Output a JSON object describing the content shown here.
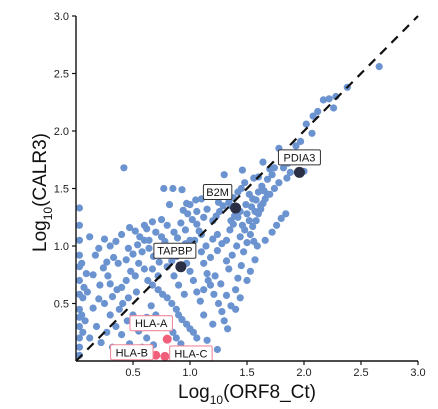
{
  "chart_data": {
    "type": "scatter",
    "xlabel": {
      "prefix": "Log",
      "sub": "10",
      "suffix": "(ORF8_Ct)"
    },
    "ylabel": {
      "prefix": "Log",
      "sub": "10",
      "suffix": "(CALR3)"
    },
    "xlim": [
      0,
      3.0
    ],
    "ylim": [
      0,
      3.0
    ],
    "x_ticks": [
      "0.5",
      "1.0",
      "1.5",
      "2.0",
      "2.5",
      "3.0"
    ],
    "y_ticks": [
      "0.5",
      "1.0",
      "1.5",
      "2.0",
      "2.5",
      "3.0"
    ],
    "diagonal": "y = x, dashed",
    "grid": false,
    "colors": {
      "points": "#6b93d0",
      "highlight": "#2b2f45",
      "hla": "#f0607a",
      "hla_border": "#f28a9c",
      "label_border": "#333333"
    },
    "highlighted": [
      {
        "label": "PDIA3",
        "x": 1.96,
        "y": 1.64
      },
      {
        "label": "B2M",
        "x": 1.4,
        "y": 1.33
      },
      {
        "label": "TAPBP",
        "x": 0.92,
        "y": 0.82
      }
    ],
    "hla": [
      {
        "label": "HLA-A",
        "x": 0.8,
        "y": 0.19
      },
      {
        "label": "HLA-B",
        "x": 0.7,
        "y": 0.05
      },
      {
        "label": "HLA-C",
        "x": 0.78,
        "y": 0.04
      }
    ],
    "points": [
      [
        2.66,
        2.56
      ],
      [
        2.38,
        2.38
      ],
      [
        2.28,
        2.3
      ],
      [
        2.22,
        2.28
      ],
      [
        2.17,
        2.27
      ],
      [
        2.12,
        2.17
      ],
      [
        2.08,
        2.13
      ],
      [
        2.02,
        2.06
      ],
      [
        2.26,
        2.2
      ],
      [
        2.07,
        1.98
      ],
      [
        1.97,
        1.91
      ],
      [
        1.93,
        1.87
      ],
      [
        1.9,
        1.76
      ],
      [
        1.86,
        1.72
      ],
      [
        1.82,
        1.78
      ],
      [
        1.78,
        1.85
      ],
      [
        1.74,
        1.68
      ],
      [
        1.7,
        1.67
      ],
      [
        1.64,
        1.73
      ],
      [
        1.6,
        1.6
      ],
      [
        1.56,
        1.59
      ],
      [
        1.52,
        1.45
      ],
      [
        1.48,
        1.55
      ],
      [
        1.45,
        1.5
      ],
      [
        1.42,
        1.47
      ],
      [
        1.38,
        1.42
      ],
      [
        1.34,
        1.38
      ],
      [
        1.31,
        1.45
      ],
      [
        1.27,
        1.45
      ],
      [
        1.2,
        1.48
      ],
      [
        1.16,
        1.44
      ],
      [
        1.1,
        1.41
      ],
      [
        1.05,
        1.4
      ],
      [
        0.97,
        1.37
      ],
      [
        0.93,
        1.49
      ],
      [
        0.85,
        1.5
      ],
      [
        0.77,
        1.5
      ],
      [
        1.3,
        1.62
      ],
      [
        1.46,
        1.66
      ],
      [
        1.63,
        1.52
      ],
      [
        1.78,
        1.55
      ],
      [
        1.85,
        1.59
      ],
      [
        2.0,
        1.65
      ],
      [
        1.95,
        1.63
      ],
      [
        0.42,
        1.68
      ],
      [
        0.82,
        1.36
      ],
      [
        0.75,
        1.23
      ],
      [
        0.67,
        1.21
      ],
      [
        0.6,
        1.18
      ],
      [
        0.52,
        1.13
      ],
      [
        0.47,
        1.16
      ],
      [
        0.4,
        1.1
      ],
      [
        0.35,
        1.04
      ],
      [
        0.3,
        1.0
      ],
      [
        0.25,
        1.06
      ],
      [
        0.2,
        0.98
      ],
      [
        0.17,
        0.92
      ],
      [
        0.12,
        1.08
      ],
      [
        0.09,
        0.76
      ],
      [
        0.06,
        0.55
      ],
      [
        0.5,
        0.93
      ],
      [
        0.55,
        0.85
      ],
      [
        0.6,
        0.8
      ],
      [
        0.63,
        0.7
      ],
      [
        0.67,
        0.66
      ],
      [
        0.72,
        0.62
      ],
      [
        0.76,
        0.58
      ],
      [
        0.8,
        0.55
      ],
      [
        0.84,
        0.5
      ],
      [
        0.88,
        0.45
      ],
      [
        0.9,
        0.4
      ],
      [
        0.93,
        0.36
      ],
      [
        0.97,
        0.32
      ],
      [
        1.0,
        0.28
      ],
      [
        1.03,
        0.25
      ],
      [
        1.06,
        0.2
      ],
      [
        0.55,
        0.26
      ],
      [
        0.47,
        0.15
      ],
      [
        0.4,
        0.23
      ],
      [
        0.35,
        0.3
      ],
      [
        0.3,
        0.4
      ],
      [
        0.25,
        0.5
      ],
      [
        0.2,
        0.54
      ],
      [
        0.15,
        0.46
      ],
      [
        0.1,
        0.6
      ],
      [
        1.1,
        0.95
      ],
      [
        1.12,
        0.85
      ],
      [
        1.15,
        0.76
      ],
      [
        1.18,
        0.66
      ],
      [
        1.21,
        0.58
      ],
      [
        1.25,
        0.5
      ],
      [
        1.28,
        0.43
      ],
      [
        1.3,
        0.35
      ],
      [
        1.33,
        0.28
      ],
      [
        1.36,
        0.48
      ],
      [
        1.4,
        0.62
      ],
      [
        1.42,
        0.72
      ],
      [
        1.45,
        0.83
      ],
      [
        1.47,
        0.95
      ],
      [
        1.5,
        1.03
      ],
      [
        1.53,
        1.1
      ],
      [
        1.55,
        1.17
      ],
      [
        1.58,
        1.22
      ],
      [
        1.6,
        1.28
      ],
      [
        1.62,
        1.32
      ],
      [
        1.64,
        1.37
      ],
      [
        1.66,
        1.41
      ],
      [
        1.68,
        1.45
      ],
      [
        1.56,
        1.04
      ],
      [
        1.59,
        1.0
      ],
      [
        1.2,
        1.22
      ],
      [
        1.23,
        1.26
      ],
      [
        1.26,
        1.3
      ],
      [
        1.29,
        1.35
      ],
      [
        1.32,
        1.05
      ],
      [
        1.35,
        1.14
      ],
      [
        1.38,
        1.19
      ],
      [
        1.02,
        1.23
      ],
      [
        0.98,
        1.28
      ],
      [
        0.94,
        1.31
      ],
      [
        1.06,
        1.19
      ],
      [
        1.08,
        1.13
      ],
      [
        1.0,
        1.05
      ],
      [
        0.96,
        1.02
      ],
      [
        0.92,
        0.96
      ],
      [
        0.88,
        0.91
      ],
      [
        0.84,
        0.87
      ],
      [
        0.8,
        0.82
      ],
      [
        0.73,
        0.86
      ],
      [
        0.68,
        0.91
      ],
      [
        0.64,
        0.98
      ],
      [
        0.6,
        1.05
      ],
      [
        0.56,
        1.08
      ],
      [
        0.52,
        0.74
      ],
      [
        0.48,
        0.78
      ],
      [
        0.44,
        0.7
      ],
      [
        0.4,
        0.64
      ],
      [
        0.36,
        0.62
      ],
      [
        0.32,
        0.56
      ],
      [
        0.28,
        0.74
      ],
      [
        0.24,
        0.81
      ],
      [
        0.21,
        0.66
      ],
      [
        1.12,
        0.62
      ],
      [
        1.16,
        0.7
      ],
      [
        1.18,
        0.9
      ],
      [
        1.24,
        0.96
      ],
      [
        1.28,
        1.02
      ],
      [
        1.32,
        0.87
      ],
      [
        1.34,
        0.8
      ],
      [
        1.37,
        0.92
      ],
      [
        1.41,
        1.0
      ],
      [
        1.44,
        1.08
      ],
      [
        1.48,
        1.14
      ],
      [
        1.52,
        1.22
      ],
      [
        1.57,
        1.3
      ],
      [
        1.62,
        1.35
      ],
      [
        1.7,
        1.45
      ],
      [
        1.74,
        1.5
      ],
      [
        1.6,
        1.47
      ],
      [
        1.55,
        1.41
      ],
      [
        1.49,
        1.36
      ],
      [
        1.44,
        1.3
      ],
      [
        1.39,
        1.26
      ],
      [
        1.36,
        1.22
      ],
      [
        1.24,
        1.1
      ],
      [
        1.2,
        1.06
      ],
      [
        1.14,
        1.0
      ],
      [
        1.1,
        1.1
      ],
      [
        1.04,
        1.05
      ],
      [
        0.66,
        0.48
      ],
      [
        0.7,
        0.4
      ],
      [
        0.74,
        0.35
      ],
      [
        0.78,
        0.3
      ],
      [
        0.85,
        0.25
      ],
      [
        0.88,
        0.2
      ],
      [
        0.92,
        0.15
      ],
      [
        0.95,
        0.1
      ],
      [
        0.62,
        0.38
      ],
      [
        0.58,
        0.33
      ],
      [
        0.5,
        0.4
      ],
      [
        0.45,
        0.35
      ],
      [
        0.38,
        0.45
      ],
      [
        0.33,
        0.9
      ],
      [
        0.46,
        0.98
      ],
      [
        0.54,
        1.01
      ],
      [
        0.58,
        0.95
      ],
      [
        0.7,
        1.12
      ],
      [
        0.64,
        1.05
      ],
      [
        0.86,
        1.12
      ],
      [
        0.89,
        1.07
      ],
      [
        0.96,
        1.14
      ],
      [
        0.78,
        1.04
      ],
      [
        0.8,
        1.18
      ],
      [
        1.12,
        0.4
      ],
      [
        1.09,
        0.52
      ],
      [
        1.06,
        0.6
      ],
      [
        1.03,
        0.7
      ],
      [
        1.0,
        0.78
      ],
      [
        0.97,
        0.85
      ],
      [
        1.22,
        0.74
      ],
      [
        1.27,
        0.67
      ],
      [
        1.32,
        0.57
      ],
      [
        1.4,
        0.45
      ],
      [
        1.44,
        0.55
      ],
      [
        1.5,
        0.7
      ],
      [
        1.53,
        0.78
      ],
      [
        1.57,
        0.88
      ],
      [
        1.66,
        1.05
      ],
      [
        1.72,
        1.12
      ],
      [
        1.76,
        1.18
      ],
      [
        1.8,
        1.24
      ],
      [
        1.84,
        1.28
      ],
      [
        0.03,
        1.33
      ],
      [
        0.03,
        1.18
      ],
      [
        0.03,
        1.05
      ],
      [
        0.03,
        0.92
      ],
      [
        0.03,
        0.82
      ],
      [
        0.03,
        0.7
      ],
      [
        0.03,
        0.58
      ],
      [
        0.03,
        0.45
      ],
      [
        0.03,
        0.38
      ],
      [
        0.03,
        0.3
      ],
      [
        0.03,
        0.2
      ],
      [
        0.03,
        0.12
      ],
      [
        0.03,
        0.05
      ],
      [
        0.05,
        0.85
      ],
      [
        0.07,
        0.64
      ],
      [
        0.05,
        0.4
      ],
      [
        0.06,
        0.25
      ],
      [
        0.08,
        0.35
      ],
      [
        0.12,
        0.2
      ],
      [
        0.18,
        0.3
      ],
      [
        0.22,
        0.16
      ],
      [
        0.27,
        0.25
      ],
      [
        0.32,
        0.12
      ],
      [
        0.42,
        0.08
      ],
      [
        0.5,
        0.05
      ],
      [
        0.58,
        0.12
      ],
      [
        0.62,
        0.2
      ],
      [
        0.68,
        0.14
      ],
      [
        1.15,
        0.18
      ],
      [
        1.24,
        0.1
      ],
      [
        1.2,
        0.32
      ],
      [
        0.95,
        0.58
      ],
      [
        0.9,
        0.66
      ],
      [
        0.86,
        0.74
      ],
      [
        0.72,
        0.74
      ],
      [
        0.67,
        0.8
      ],
      [
        0.53,
        0.6
      ],
      [
        0.46,
        0.55
      ],
      [
        0.41,
        0.5
      ],
      [
        0.3,
        0.67
      ],
      [
        0.15,
        0.75
      ],
      [
        0.27,
        0.86
      ],
      [
        0.37,
        0.85
      ],
      [
        0.44,
        0.88
      ],
      [
        0.62,
        1.15
      ],
      [
        0.75,
        1.08
      ],
      [
        0.92,
        1.2
      ],
      [
        1.0,
        1.36
      ],
      [
        1.15,
        1.32
      ],
      [
        1.25,
        1.38
      ],
      [
        1.42,
        1.25
      ],
      [
        1.46,
        1.18
      ],
      [
        1.5,
        1.28
      ],
      [
        1.54,
        1.34
      ],
      [
        1.58,
        1.4
      ],
      [
        1.65,
        1.48
      ],
      [
        1.68,
        1.58
      ],
      [
        1.72,
        1.62
      ],
      [
        1.82,
        1.68
      ],
      [
        1.88,
        1.64
      ],
      [
        2.05,
        1.75
      ],
      [
        1.12,
        1.25
      ],
      [
        1.06,
        1.3
      ],
      [
        1.36,
        1.35
      ]
    ]
  }
}
